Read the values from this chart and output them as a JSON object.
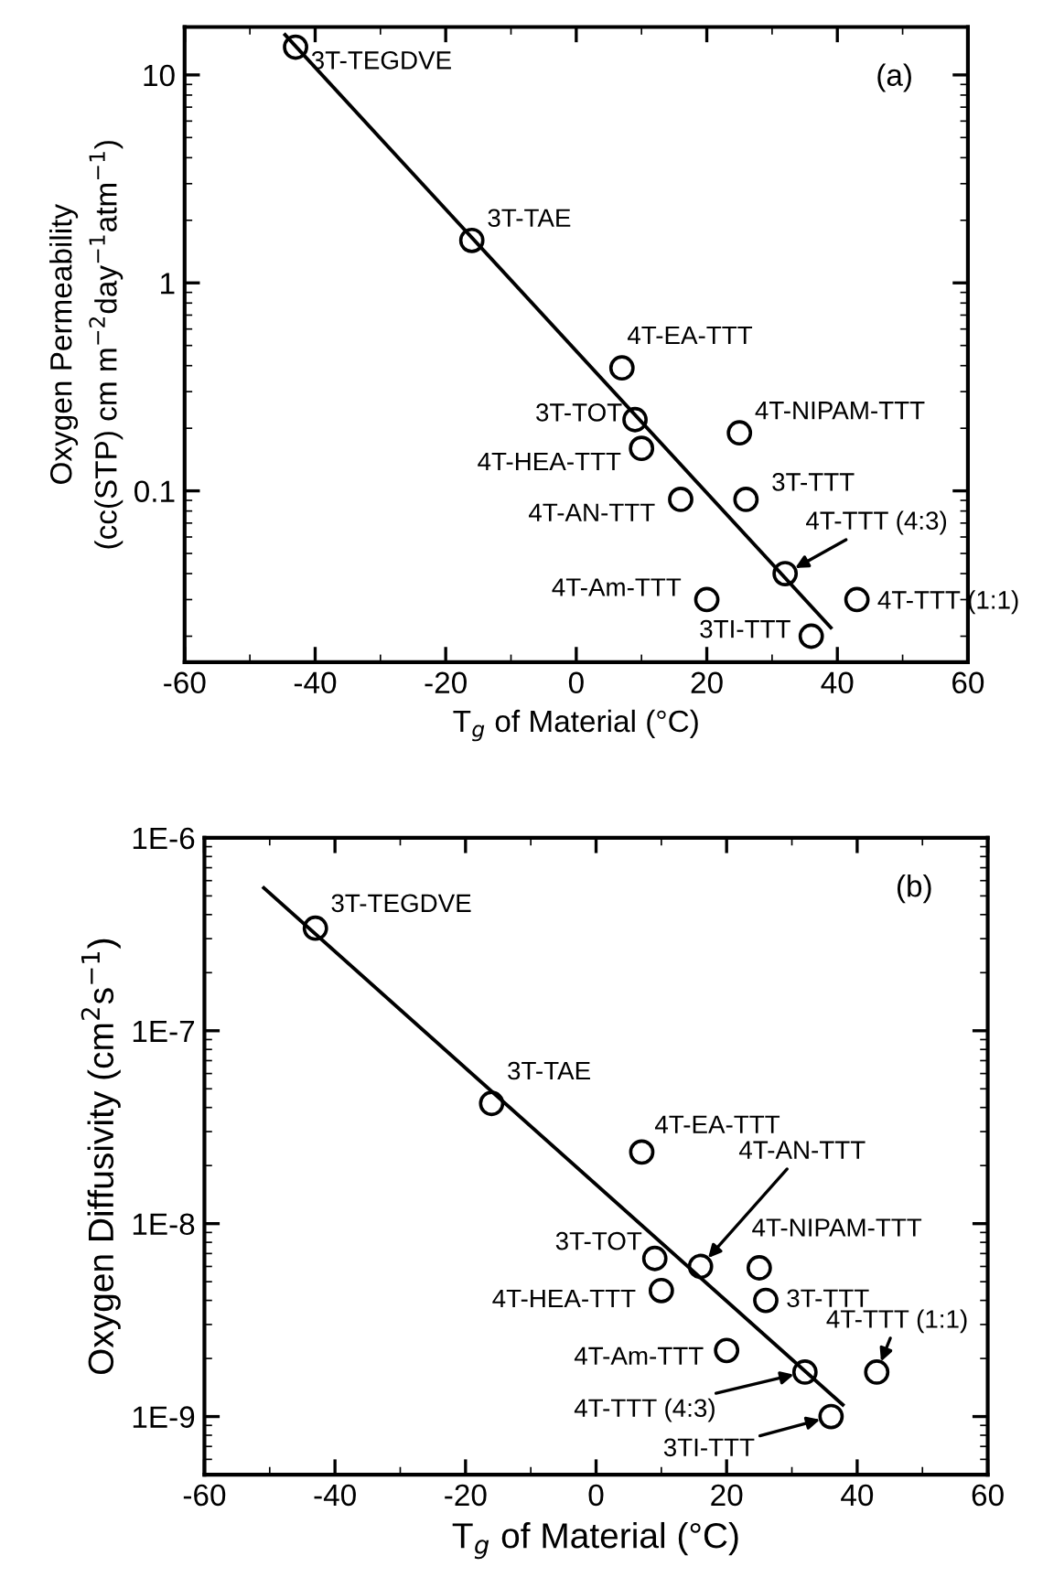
{
  "chart_data": [
    {
      "type": "scatter",
      "xlabel": "T$_{g}$ of Material (°C)",
      "ylabel": "Oxygen Permeability\n(cc(STP) cm m$^{−2}$day$^{−1}$atm$^{−1}$)",
      "log": "y",
      "xlim": [
        -60,
        60
      ],
      "xticks": [
        -60,
        -40,
        -20,
        0,
        20,
        40,
        60
      ],
      "ylim": [
        0.015,
        17
      ],
      "yticks": [
        0.1,
        1,
        10
      ],
      "grid": false,
      "legend": false,
      "series": [
        {
          "marker": "circle",
          "color": "#000000",
          "x": [
            -43,
            -16,
            7,
            9,
            10,
            25,
            16,
            26,
            32,
            20,
            43,
            36
          ],
          "values": [
            13.6,
            1.6,
            0.39,
            0.22,
            0.16,
            0.19,
            0.091,
            0.091,
            0.04,
            0.03,
            0.03,
            0.02
          ]
        },
        {
          "type": "line",
          "color": "#000000",
          "x": [
            -44.6,
            39
          ],
          "values": [
            15.6,
            0.022
          ]
        }
      ],
      "annotations": [
        "(a)",
        {
          "text": "3T-TEGDVE",
          "x": -43,
          "y": 13.6
        },
        {
          "text": "3T-TAE",
          "x": -16,
          "y": 1.6
        },
        {
          "text": "4T-EA-TTT",
          "x": 7,
          "y": 0.39
        },
        {
          "text": "3T-TOT",
          "x": 9,
          "y": 0.22
        },
        {
          "text": "4T-HEA-TTT",
          "x": 10,
          "y": 0.16
        },
        {
          "text": "4T-NIPAM-TTT",
          "x": 25,
          "y": 0.19
        },
        {
          "text": "4T-AN-TTT",
          "x": 16,
          "y": 0.091
        },
        {
          "text": "3T-TTT",
          "x": 26,
          "y": 0.091
        },
        {
          "text": "4T-TTT (4:3)",
          "x": 32,
          "y": 0.04
        },
        {
          "text": "4T-Am-TTT",
          "x": 20,
          "y": 0.03
        },
        {
          "text": "4T-TTT (1:1)",
          "x": 43,
          "y": 0.03
        },
        {
          "text": "3TI-TTT",
          "x": 36,
          "y": 0.02
        }
      ]
    },
    {
      "type": "scatter",
      "xlabel": "T$_{g}$ of Material (°C)",
      "ylabel": "Oxygen Diffusivity (cm$^{2}$s$^{−1}$)",
      "log": "y",
      "xlim": [
        -60,
        60
      ],
      "xticks": [
        -60,
        -40,
        -20,
        0,
        20,
        40,
        60
      ],
      "ylim": [
        5e-10,
        1e-06
      ],
      "yticks": [
        {
          "value": 1e-09,
          "label": "1E-9"
        },
        {
          "value": 1e-08,
          "label": "1E-8"
        },
        {
          "value": 1e-07,
          "label": "1E-7"
        },
        {
          "value": 1e-06,
          "label": "1E-6"
        }
      ],
      "grid": false,
      "legend": false,
      "series": [
        {
          "marker": "circle",
          "color": "#000000",
          "x": [
            -43,
            -16,
            7,
            9,
            16,
            25,
            10,
            26,
            20,
            32,
            43,
            36
          ],
          "values": [
            3.4e-07,
            4.2e-08,
            2.35e-08,
            6.6e-09,
            6e-09,
            5.9e-09,
            4.5e-09,
            4e-09,
            2.2e-09,
            1.7e-09,
            1.7e-09,
            1e-09
          ]
        },
        {
          "type": "line",
          "color": "#000000",
          "x": [
            -50.9,
            37.8
          ],
          "values": [
            5.5e-07,
            1.15e-09
          ]
        }
      ],
      "annotations": [
        "(b)",
        {
          "text": "3T-TEGDVE",
          "x": -43,
          "y": 3.4e-07
        },
        {
          "text": "3T-TAE",
          "x": -16,
          "y": 4.2e-08
        },
        {
          "text": "4T-EA-TTT",
          "x": 7,
          "y": 2.35e-08
        },
        {
          "text": "3T-TOT",
          "x": 9,
          "y": 6.6e-09
        },
        {
          "text": "4T-AN-TTT",
          "x": 16,
          "y": 6e-09
        },
        {
          "text": "4T-NIPAM-TTT",
          "x": 25,
          "y": 5.9e-09
        },
        {
          "text": "4T-HEA-TTT",
          "x": 10,
          "y": 4.5e-09
        },
        {
          "text": "3T-TTT",
          "x": 26,
          "y": 4e-09
        },
        {
          "text": "4T-Am-TTT",
          "x": 20,
          "y": 2.2e-09
        },
        {
          "text": "4T-TTT (4:3)",
          "x": 32,
          "y": 1.7e-09
        },
        {
          "text": "4T-TTT (1:1)",
          "x": 43,
          "y": 1.7e-09
        },
        {
          "text": "3TI-TTT",
          "x": 36,
          "y": 1e-09
        }
      ]
    }
  ]
}
